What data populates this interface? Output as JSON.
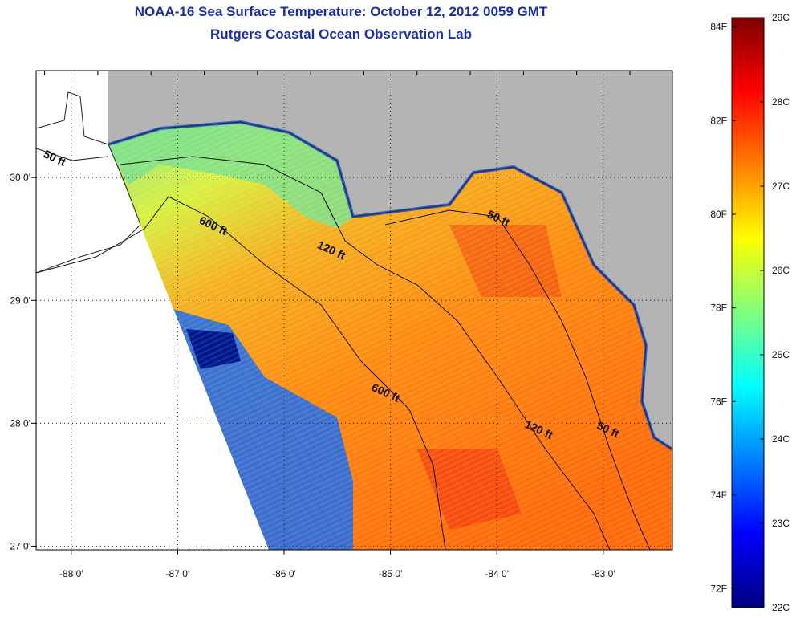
{
  "title": {
    "line1": "NOAA-16 Sea Surface Temperature:  October 12, 2012 0059 GMT",
    "line2": "Rutgers Coastal Ocean Observation Lab"
  },
  "map": {
    "lon_range": [
      -88.33,
      -82.35
    ],
    "lat_range": [
      26.97,
      30.87
    ],
    "lon_ticks": [
      {
        "value": -88,
        "label": "-88 0'"
      },
      {
        "value": -87,
        "label": "-87 0'"
      },
      {
        "value": -86,
        "label": "-86 0'"
      },
      {
        "value": -85,
        "label": "-85 0'"
      },
      {
        "value": -84,
        "label": "-84 0'"
      },
      {
        "value": -83,
        "label": "-83 0'"
      }
    ],
    "lat_ticks": [
      {
        "value": 30,
        "label": "30 0'"
      },
      {
        "value": 29,
        "label": "29 0'"
      },
      {
        "value": 28,
        "label": "28 0'"
      },
      {
        "value": 27,
        "label": "27 0'"
      }
    ],
    "grid": "dotted",
    "land_color": "#b4b4b4",
    "no_data_color": "#ffffff",
    "contours": [
      {
        "label": "50 ft",
        "lon": -88.17,
        "lat": 30.13
      },
      {
        "label": "600 ft",
        "lon": -86.68,
        "lat": 29.58
      },
      {
        "label": "120 ft",
        "lon": -85.57,
        "lat": 29.38
      },
      {
        "label": "50 ft",
        "lon": -84.0,
        "lat": 29.64
      },
      {
        "label": "600 ft",
        "lon": -85.06,
        "lat": 28.22
      },
      {
        "label": "120 ft",
        "lon": -83.62,
        "lat": 27.92
      },
      {
        "label": "50 ft",
        "lon": -82.97,
        "lat": 27.92
      }
    ]
  },
  "colorbar": {
    "celsius": [
      "29C",
      "28C",
      "27C",
      "26C",
      "25C",
      "24C",
      "23C",
      "22C"
    ],
    "fahrenheit": [
      "84F",
      "82F",
      "80F",
      "78F",
      "76F",
      "74F",
      "72F"
    ],
    "range_c": [
      22,
      29
    ],
    "stops": [
      "#00007f",
      "#0000ff",
      "#007fff",
      "#00ffff",
      "#7fff7f",
      "#ffff00",
      "#ff7f00",
      "#ff0000",
      "#7f0000"
    ]
  }
}
